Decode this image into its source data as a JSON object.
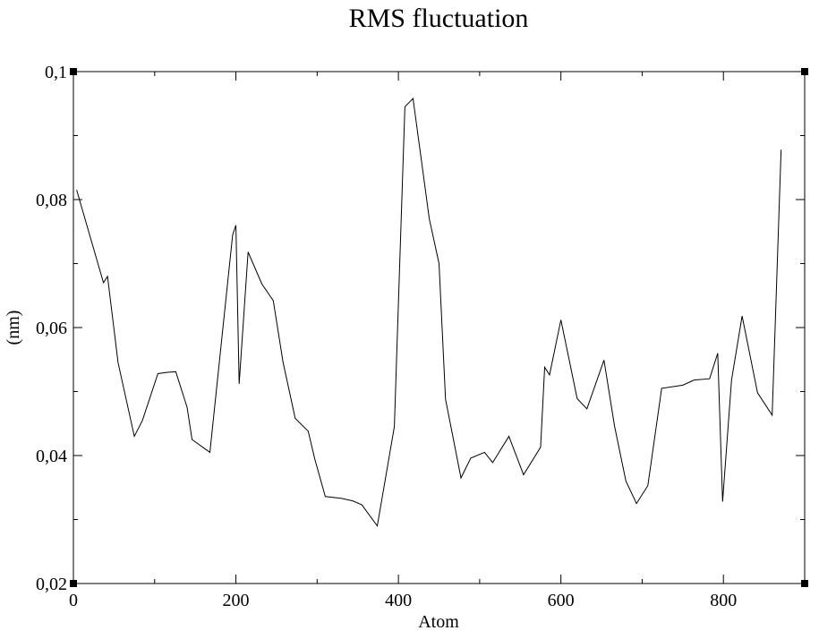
{
  "chart_data": {
    "type": "line",
    "title": "RMS fluctuation",
    "xlabel": "Atom",
    "ylabel": "(nm)",
    "xlim": [
      0,
      900
    ],
    "ylim": [
      0.02,
      0.1
    ],
    "x_ticks": [
      {
        "value": 0,
        "label": "0"
      },
      {
        "value": 200,
        "label": "200"
      },
      {
        "value": 400,
        "label": "400"
      },
      {
        "value": 600,
        "label": "600"
      },
      {
        "value": 800,
        "label": "800"
      }
    ],
    "y_ticks": [
      {
        "value": 0.02,
        "label": "0,02"
      },
      {
        "value": 0.04,
        "label": "0,04"
      },
      {
        "value": 0.06,
        "label": "0,06"
      },
      {
        "value": 0.08,
        "label": "0,08"
      },
      {
        "value": 0.1,
        "label": "0,1"
      }
    ],
    "grid": false,
    "series": [
      {
        "x": [
          4,
          37,
          42,
          55,
          75,
          85,
          104,
          116,
          126,
          140,
          146,
          168,
          196,
          200,
          204,
          215,
          232,
          246,
          258,
          273,
          289,
          297,
          310,
          330,
          344,
          355,
          374,
          395,
          408,
          418,
          438,
          450,
          458,
          477,
          489,
          506,
          516,
          536,
          554,
          575,
          580,
          586,
          600,
          620,
          632,
          653,
          666,
          680,
          693,
          707,
          724,
          750,
          764,
          783,
          793,
          799,
          810,
          823,
          842,
          860,
          871
        ],
        "y": [
          0.0815,
          0.067,
          0.068,
          0.0545,
          0.043,
          0.0455,
          0.0528,
          0.053,
          0.0531,
          0.0475,
          0.0425,
          0.0405,
          0.0745,
          0.076,
          0.0512,
          0.0718,
          0.0668,
          0.0642,
          0.0546,
          0.0458,
          0.0438,
          0.0395,
          0.0336,
          0.0333,
          0.0329,
          0.0323,
          0.029,
          0.0445,
          0.0945,
          0.0958,
          0.077,
          0.07,
          0.0488,
          0.0365,
          0.0396,
          0.0405,
          0.0389,
          0.043,
          0.037,
          0.0413,
          0.0538,
          0.0526,
          0.0612,
          0.0489,
          0.0473,
          0.0549,
          0.0446,
          0.036,
          0.0325,
          0.0353,
          0.0505,
          0.051,
          0.0518,
          0.052,
          0.056,
          0.0328,
          0.0518,
          0.0618,
          0.0498,
          0.0463,
          0.0878
        ]
      }
    ]
  }
}
